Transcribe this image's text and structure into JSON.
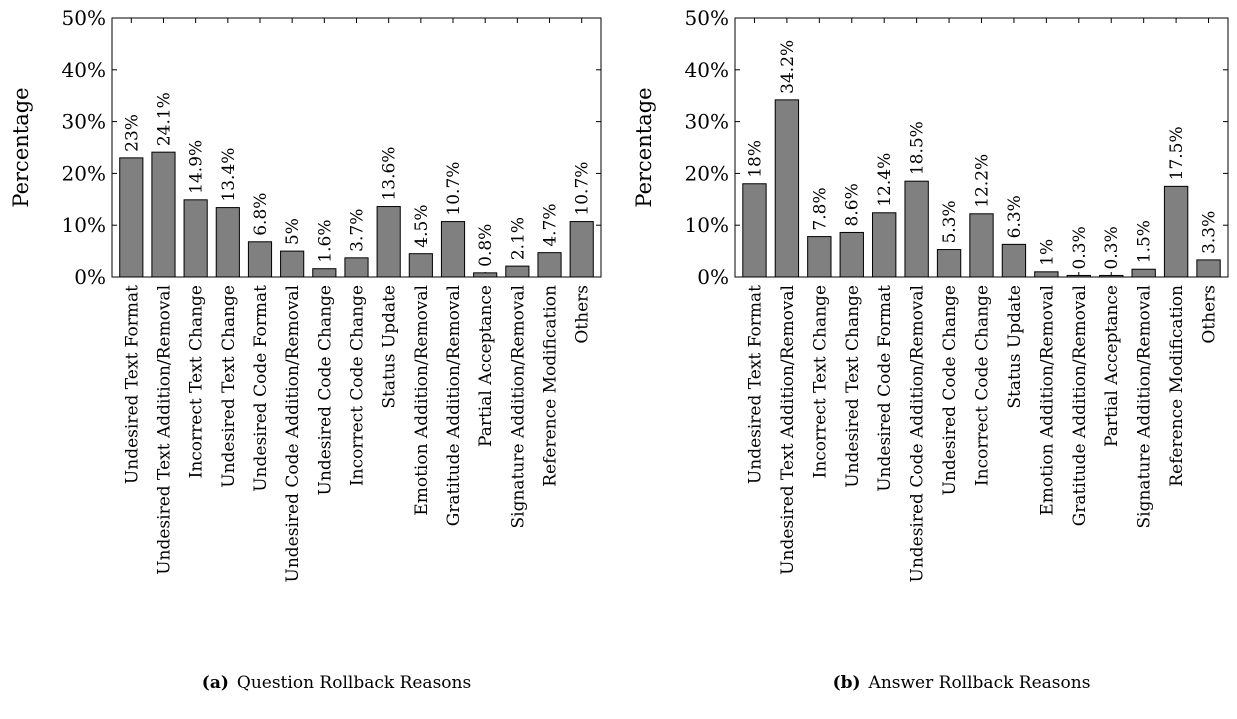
{
  "chart_data": [
    {
      "type": "bar",
      "caption_prefix": "(a)",
      "caption_text": "Question Rollback Reasons",
      "ylabel": "Percentage",
      "ylim": [
        0,
        50
      ],
      "yticks": [
        0,
        10,
        20,
        30,
        40,
        50
      ],
      "ytick_labels": [
        "0%",
        "10%",
        "20%",
        "30%",
        "40%",
        "50%"
      ],
      "bar_color": "#808080",
      "categories": [
        "Undesired Text Format",
        "Undesired Text Addition/Removal",
        "Incorrect Text Change",
        "Undesired Text Change",
        "Undesired Code Format",
        "Undesired Code Addition/Removal",
        "Undesired Code Change",
        "Incorrect Code Change",
        "Status Update",
        "Emotion Addition/Removal",
        "Gratitude Addition/Removal",
        "Partial Acceptance",
        "Signature Addition/Removal",
        "Reference Modification",
        "Others"
      ],
      "values": [
        23,
        24.1,
        14.9,
        13.4,
        6.8,
        5,
        1.6,
        3.7,
        13.6,
        4.5,
        10.7,
        0.8,
        2.1,
        4.7,
        10.7
      ],
      "value_labels": [
        "23%",
        "24.1%",
        "14.9%",
        "13.4%",
        "6.8%",
        "5%",
        "1.6%",
        "3.7%",
        "13.6%",
        "4.5%",
        "10.7%",
        "0.8%",
        "2.1%",
        "4.7%",
        "10.7%"
      ]
    },
    {
      "type": "bar",
      "caption_prefix": "(b)",
      "caption_text": "Answer Rollback Reasons",
      "ylabel": "Percentage",
      "ylim": [
        0,
        50
      ],
      "yticks": [
        0,
        10,
        20,
        30,
        40,
        50
      ],
      "ytick_labels": [
        "0%",
        "10%",
        "20%",
        "30%",
        "40%",
        "50%"
      ],
      "bar_color": "#808080",
      "categories": [
        "Undesired Text Format",
        "Undesired Text Addition/Removal",
        "Incorrect Text Change",
        "Undesired Text Change",
        "Undesired Code Format",
        "Undesired Code Addition/Removal",
        "Undesired Code Change",
        "Incorrect Code Change",
        "Status Update",
        "Emotion Addition/Removal",
        "Gratitude Addition/Removal",
        "Partial Acceptance",
        "Signature Addition/Removal",
        "Reference Modification",
        "Others"
      ],
      "values": [
        18,
        34.2,
        7.8,
        8.6,
        12.4,
        18.5,
        5.3,
        12.2,
        6.3,
        1,
        0.3,
        0.3,
        1.5,
        17.5,
        3.3
      ],
      "value_labels": [
        "18%",
        "34.2%",
        "7.8%",
        "8.6%",
        "12.4%",
        "18.5%",
        "5.3%",
        "12.2%",
        "6.3%",
        "1%",
        "0.3%",
        "0.3%",
        "1.5%",
        "17.5%",
        "3.3%"
      ]
    }
  ]
}
